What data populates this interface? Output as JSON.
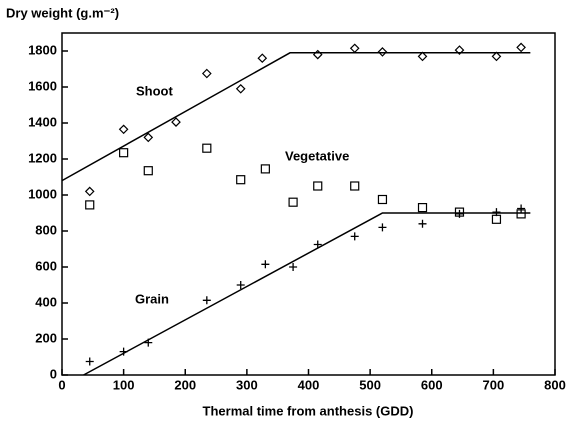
{
  "chart_data": {
    "type": "scatter",
    "title": "Dry weight (g.m⁻²)",
    "x_label": "Thermal time from anthesis (GDD)",
    "annotations": [
      "Shoot",
      "Vegetative",
      "Grain"
    ],
    "xlim": [
      0,
      800
    ],
    "xticks": [
      0,
      100,
      200,
      300,
      400,
      500,
      600,
      700,
      800
    ],
    "ylim": [
      0,
      1900
    ],
    "yticks": [
      0,
      200,
      400,
      600,
      800,
      1000,
      1200,
      1400,
      1600,
      1800
    ],
    "series": [
      {
        "marker": "diamond",
        "color": "#000000",
        "x": [
          45,
          100,
          140,
          185,
          235,
          290,
          325,
          415,
          475,
          520,
          585,
          645,
          705,
          745
        ],
        "values": [
          1020,
          1365,
          1320,
          1405,
          1675,
          1590,
          1760,
          1780,
          1815,
          1795,
          1770,
          1805,
          1770,
          1820
        ]
      },
      {
        "marker": "square",
        "color": "#000000",
        "x": [
          45,
          100,
          140,
          235,
          290,
          330,
          375,
          415,
          475,
          520,
          585,
          645,
          705,
          745
        ],
        "values": [
          945,
          1235,
          1135,
          1260,
          1085,
          1145,
          960,
          1050,
          1050,
          975,
          930,
          905,
          865,
          895
        ]
      },
      {
        "marker": "plus",
        "color": "#000000",
        "x": [
          45,
          100,
          140,
          235,
          290,
          330,
          375,
          415,
          475,
          520,
          585,
          645,
          705,
          745
        ],
        "values": [
          75,
          130,
          180,
          415,
          500,
          615,
          600,
          725,
          770,
          820,
          840,
          895,
          905,
          925
        ]
      }
    ],
    "fit_lines": [
      {
        "color": "#000000",
        "x": [
          0,
          370,
          760
        ],
        "values": [
          1080,
          1790,
          1790
        ]
      },
      {
        "color": "#000000",
        "x": [
          35,
          520,
          760
        ],
        "values": [
          0,
          900,
          900
        ]
      }
    ]
  }
}
